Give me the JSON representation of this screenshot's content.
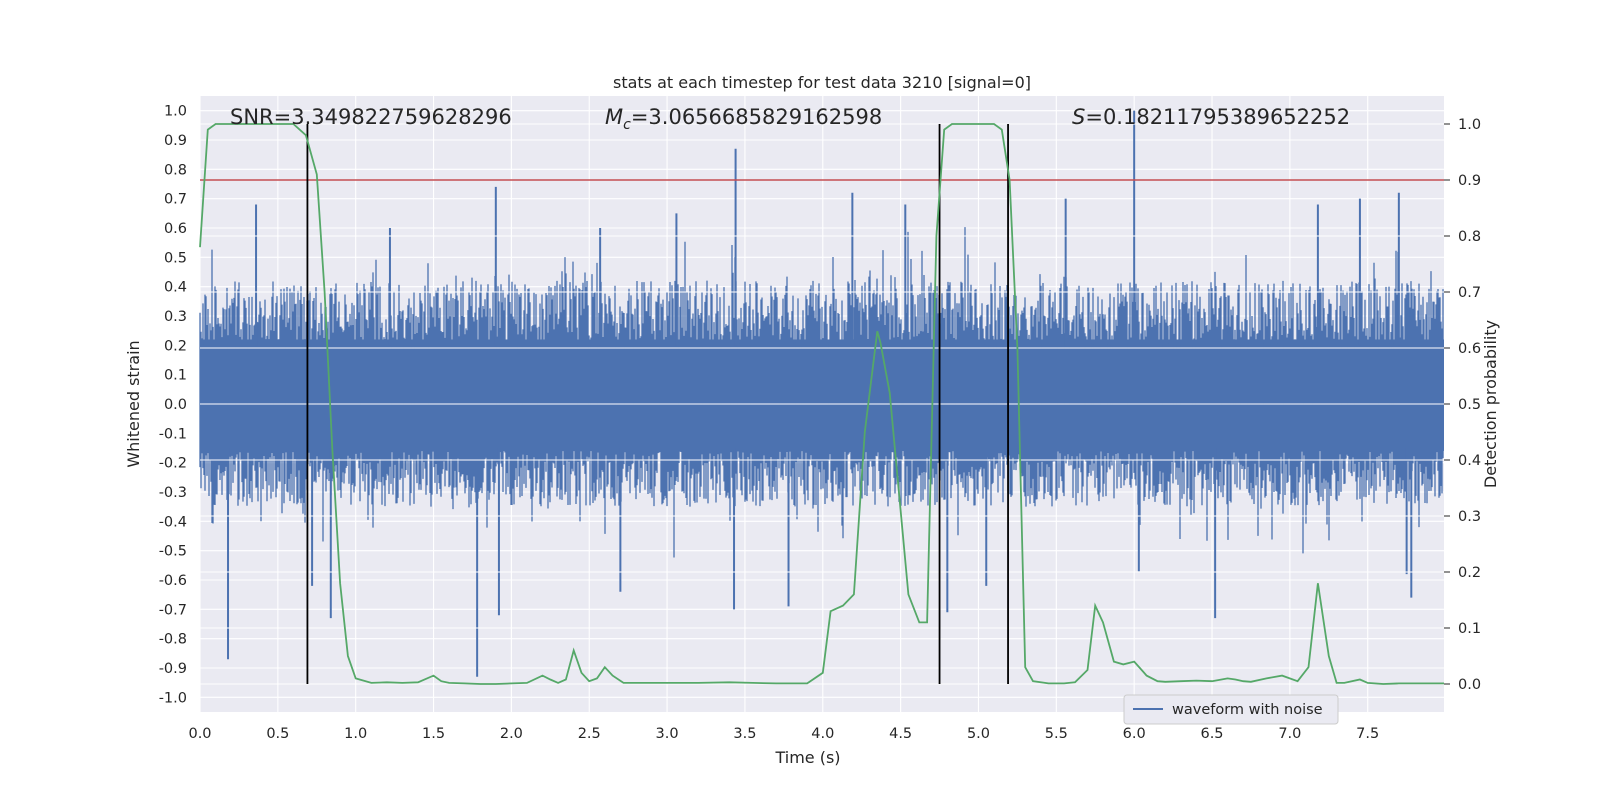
{
  "chart_data": {
    "type": "line",
    "title": "stats at each timestep for test data 3210 [signal=0]",
    "xlabel": "Time (s)",
    "ylabel": "Whitened strain",
    "ylabel_right": "Detection probability",
    "xlim": [
      0,
      7.99
    ],
    "ylim": [
      -1.05,
      1.05
    ],
    "ylim_right": [
      -0.05,
      1.05
    ],
    "xticks": [
      "0.0",
      "0.5",
      "1.0",
      "1.5",
      "2.0",
      "2.5",
      "3.0",
      "3.5",
      "4.0",
      "4.5",
      "5.0",
      "5.5",
      "6.0",
      "6.5",
      "7.0",
      "7.5"
    ],
    "yticks": [
      "1.0",
      "0.9",
      "0.8",
      "0.7",
      "0.6",
      "0.5",
      "0.4",
      "0.3",
      "0.2",
      "0.1",
      "0.0",
      "-0.1",
      "-0.2",
      "-0.3",
      "-0.4",
      "-0.5",
      "-0.6",
      "-0.7",
      "-0.8",
      "-0.9",
      "-1.0"
    ],
    "yticks_right": [
      "1.0",
      "0.9",
      "0.8",
      "0.7",
      "0.6",
      "0.5",
      "0.4",
      "0.3",
      "0.2",
      "0.1",
      "0.0"
    ],
    "grid": true,
    "legend": {
      "entries": [
        "waveform with noise"
      ],
      "placement": "lower-right"
    },
    "annotations": {
      "snr": "SNR=3.349822759628296",
      "mc_symbol": "M",
      "mc_sub": "c",
      "mc_value": "=3.0656685829162598",
      "s_symbol": "S",
      "s_value": "=0.18211795389652252"
    },
    "threshold": 0.9,
    "vertical_lines_x": [
      0.69,
      4.75,
      5.19
    ],
    "series": [
      {
        "name": "waveform with noise",
        "axis": "left",
        "color": "#4c72b0",
        "band": [
          -0.35,
          0.42
        ],
        "spikes": [
          [
            0.18,
            -0.87
          ],
          [
            0.36,
            0.68
          ],
          [
            0.72,
            -0.62
          ],
          [
            0.84,
            -0.73
          ],
          [
            1.22,
            0.6
          ],
          [
            1.78,
            -0.93
          ],
          [
            1.9,
            0.74
          ],
          [
            1.92,
            -0.72
          ],
          [
            2.57,
            0.6
          ],
          [
            2.7,
            -0.64
          ],
          [
            3.06,
            0.65
          ],
          [
            3.44,
            0.87
          ],
          [
            3.43,
            -0.7
          ],
          [
            3.78,
            -0.69
          ],
          [
            4.19,
            0.72
          ],
          [
            4.53,
            0.68
          ],
          [
            4.8,
            -0.71
          ],
          [
            5.05,
            -0.62
          ],
          [
            5.56,
            0.7
          ],
          [
            6.0,
            1.0
          ],
          [
            6.03,
            -0.57
          ],
          [
            6.52,
            -0.73
          ],
          [
            7.18,
            0.68
          ],
          [
            7.45,
            0.7
          ],
          [
            7.7,
            0.72
          ],
          [
            7.78,
            -0.66
          ],
          [
            7.75,
            -0.58
          ]
        ]
      },
      {
        "name": "detection probability",
        "axis": "right",
        "color": "#55a868",
        "x": [
          0.0,
          0.05,
          0.1,
          0.2,
          0.3,
          0.4,
          0.5,
          0.6,
          0.68,
          0.75,
          0.8,
          0.85,
          0.9,
          0.95,
          1.0,
          1.1,
          1.2,
          1.3,
          1.4,
          1.5,
          1.55,
          1.6,
          1.7,
          1.8,
          1.9,
          2.0,
          2.1,
          2.2,
          2.25,
          2.3,
          2.35,
          2.4,
          2.45,
          2.5,
          2.55,
          2.6,
          2.65,
          2.72,
          2.8,
          2.85,
          2.9,
          3.0,
          3.2,
          3.4,
          3.55,
          3.7,
          3.8,
          3.9,
          4.0,
          4.05,
          4.13,
          4.2,
          4.27,
          4.35,
          4.37,
          4.43,
          4.55,
          4.62,
          4.67,
          4.73,
          4.78,
          4.83,
          4.9,
          5.0,
          5.1,
          5.15,
          5.2,
          5.25,
          5.3,
          5.35,
          5.45,
          5.55,
          5.62,
          5.7,
          5.75,
          5.8,
          5.87,
          5.93,
          6.0,
          6.08,
          6.15,
          6.2,
          6.3,
          6.4,
          6.5,
          6.6,
          6.65,
          6.7,
          6.75,
          6.85,
          6.95,
          7.05,
          7.12,
          7.18,
          7.25,
          7.3,
          7.35,
          7.45,
          7.5,
          7.6,
          7.7,
          7.8,
          7.99
        ],
        "y": [
          0.78,
          0.99,
          1.0,
          1.0,
          1.0,
          1.0,
          1.0,
          1.0,
          0.98,
          0.91,
          0.7,
          0.42,
          0.18,
          0.05,
          0.01,
          0.002,
          0.003,
          0.002,
          0.003,
          0.015,
          0.005,
          0.002,
          0.001,
          0.0,
          0.0,
          0.001,
          0.002,
          0.015,
          0.008,
          0.002,
          0.008,
          0.06,
          0.02,
          0.005,
          0.01,
          0.03,
          0.015,
          0.002,
          0.002,
          0.002,
          0.002,
          0.002,
          0.002,
          0.003,
          0.002,
          0.001,
          0.001,
          0.001,
          0.02,
          0.13,
          0.14,
          0.16,
          0.45,
          0.63,
          0.61,
          0.52,
          0.16,
          0.11,
          0.11,
          0.8,
          0.99,
          1.0,
          1.0,
          1.0,
          1.0,
          0.99,
          0.9,
          0.6,
          0.03,
          0.005,
          0.001,
          0.001,
          0.003,
          0.025,
          0.14,
          0.11,
          0.04,
          0.035,
          0.04,
          0.015,
          0.005,
          0.004,
          0.005,
          0.006,
          0.005,
          0.01,
          0.008,
          0.005,
          0.004,
          0.01,
          0.015,
          0.005,
          0.03,
          0.18,
          0.05,
          0.002,
          0.002,
          0.008,
          0.002,
          0.0,
          0.001,
          0.001,
          0.001
        ]
      },
      {
        "name": "threshold",
        "axis": "right",
        "color": "#c44e52"
      },
      {
        "name": "markers",
        "axis": "right",
        "color": "#000000"
      }
    ]
  }
}
